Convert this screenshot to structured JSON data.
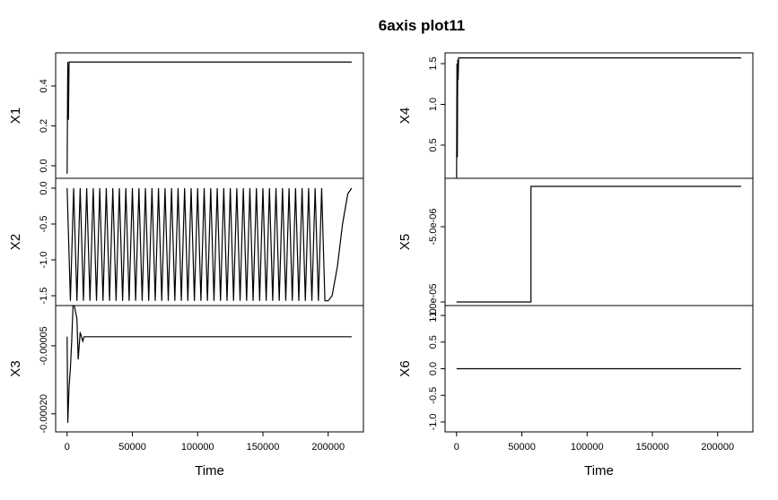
{
  "title": "6axis plot11",
  "chart_data": [
    {
      "type": "line",
      "ylabel": "X1",
      "xlim": [
        -8800,
        227000
      ],
      "x": [
        0,
        500,
        1000,
        1500,
        218000
      ],
      "values": [
        -0.04,
        0.52,
        0.23,
        0.52,
        0.52
      ],
      "ylim": [
        -0.063,
        0.566
      ],
      "yticks": [
        {
          "value": 0,
          "label": "0.0"
        },
        0.2,
        0.4
      ]
    },
    {
      "type": "line",
      "ylabel": "X2",
      "xlim": [
        -8800,
        227000
      ],
      "x": [
        0,
        2500,
        5000,
        7500,
        10000,
        12500,
        15000,
        17500,
        20000,
        22500,
        25000,
        27500,
        30000,
        32500,
        35000,
        37500,
        40000,
        42500,
        45000,
        47500,
        50000,
        52500,
        55000,
        57500,
        60000,
        62500,
        65000,
        67500,
        70000,
        72500,
        75000,
        77500,
        80000,
        82500,
        85000,
        87500,
        90000,
        92500,
        95000,
        97500,
        100000,
        102500,
        105000,
        107500,
        110000,
        112500,
        115000,
        117500,
        120000,
        122500,
        125000,
        127500,
        130000,
        132500,
        135000,
        137500,
        140000,
        142500,
        145000,
        147500,
        150000,
        152500,
        155000,
        157500,
        160000,
        162500,
        165000,
        167500,
        170000,
        172500,
        175000,
        177500,
        180000,
        182500,
        185000,
        187500,
        190000,
        192500,
        195000,
        197500,
        200000,
        203000,
        207000,
        211000,
        215000,
        218000
      ],
      "values": [
        0,
        -1.571,
        0,
        -1.571,
        0,
        -1.571,
        0,
        -1.571,
        0,
        -1.571,
        0,
        -1.571,
        0,
        -1.571,
        0,
        -1.571,
        0,
        -1.571,
        0,
        -1.571,
        0,
        -1.571,
        0,
        -1.571,
        0,
        -1.571,
        0,
        -1.571,
        0,
        -1.571,
        0,
        -1.571,
        0,
        -1.571,
        0,
        -1.571,
        0,
        -1.571,
        0,
        -1.571,
        0,
        -1.571,
        0,
        -1.571,
        0,
        -1.571,
        0,
        -1.571,
        0,
        -1.571,
        0,
        -1.571,
        0,
        -1.571,
        0,
        -1.571,
        0,
        -1.571,
        0,
        -1.571,
        0,
        -1.571,
        0,
        -1.571,
        0,
        -1.571,
        0,
        -1.571,
        0,
        -1.571,
        0,
        -1.571,
        0,
        -1.571,
        0,
        -1.571,
        0,
        -1.571,
        0,
        -1.571,
        -1.571,
        -1.5,
        -1.1,
        -0.5,
        -0.08,
        0
      ],
      "ylim": [
        -1.6375,
        0.1375
      ],
      "yticks": [
        -1.5,
        {
          "value": -1,
          "label": "-1.0"
        },
        -0.5,
        {
          "value": 0,
          "label": "0.0"
        }
      ]
    },
    {
      "type": "line",
      "ylabel": "X3",
      "xlabel": "Time",
      "xlim": [
        -8800,
        227000
      ],
      "xticks": [
        0,
        50000,
        100000,
        150000,
        200000
      ],
      "x": [
        0,
        500,
        1000,
        1500,
        2500,
        3500,
        4500,
        5500,
        7500,
        8500,
        9000,
        10000,
        11000,
        12000,
        13000,
        218000
      ],
      "values": [
        -3e-05,
        -0.00022,
        -0.00018,
        -0.00014,
        -0.0001,
        -4e-05,
        3.8e-05,
        3.8e-05,
        1e-05,
        -8e-05,
        -6e-05,
        -2e-05,
        -3e-05,
        -4e-05,
        -3e-05,
        -3e-05
      ],
      "ylim": [
        -0.00024,
        3.88e-05
      ],
      "yticks": [
        {
          "value": -0.0002,
          "label": "-0.00020"
        },
        {
          "value": -5e-05,
          "label": "-0.00005"
        }
      ]
    },
    {
      "type": "line",
      "ylabel": "X4",
      "xlim": [
        -8800,
        227000
      ],
      "x": [
        0,
        300,
        600,
        900,
        1200,
        1600,
        218000
      ],
      "values": [
        0.1,
        1.5,
        0.35,
        1.55,
        1.3,
        1.57,
        1.57
      ],
      "ylim": [
        0.093,
        1.632
      ],
      "yticks": [
        0.5,
        {
          "value": 1,
          "label": "1.0"
        },
        1.5
      ]
    },
    {
      "type": "line",
      "ylabel": "X5",
      "xlim": [
        -8800,
        227000
      ],
      "x": [
        0,
        57000,
        57000,
        218000
      ],
      "values": [
        -1e-05,
        -1e-05,
        -2.32e-06,
        -2.32e-06
      ],
      "ylim": [
        -1.0238e-05,
        -1.786e-06
      ],
      "yticks": [
        {
          "value": -1e-05,
          "label": "-1.0e-05"
        },
        {
          "value": -5e-06,
          "label": "-5.0e-06"
        }
      ]
    },
    {
      "type": "line",
      "ylabel": "X6",
      "xlabel": "Time",
      "xlim": [
        -8800,
        227000
      ],
      "xticks": [
        0,
        50000,
        100000,
        150000,
        200000
      ],
      "x": [
        0,
        218000
      ],
      "values": [
        0,
        0
      ],
      "ylim": [
        -1.186,
        1.186
      ],
      "yticks": [
        {
          "value": -1,
          "label": "-1.0"
        },
        -0.5,
        {
          "value": 0,
          "label": "0.0"
        },
        0.5,
        {
          "value": 1,
          "label": "1.0"
        }
      ]
    }
  ]
}
